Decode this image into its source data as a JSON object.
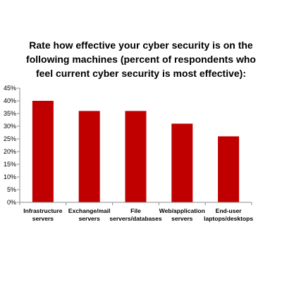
{
  "chart_data": {
    "type": "bar",
    "title_lines": [
      "Rate how effective your cyber security is on the",
      "following machines (percent of respondents who",
      "feel current cyber security is most effective):"
    ],
    "categories": [
      [
        "Infrastructure",
        "servers"
      ],
      [
        "Exchange/mail",
        "servers"
      ],
      [
        "File",
        "servers/databases"
      ],
      [
        "Web/application",
        "servers"
      ],
      [
        "End-user",
        "laptops/desktops"
      ]
    ],
    "values": [
      40,
      36,
      36,
      31,
      26
    ],
    "ylim": [
      0,
      45
    ],
    "yticks": [
      "0%",
      "5%",
      "10%",
      "15%",
      "20%",
      "25%",
      "30%",
      "35%",
      "40%",
      "45%"
    ],
    "grid": false,
    "colors": {
      "bar": "#c00000",
      "axis": "#8c8c8c"
    }
  }
}
